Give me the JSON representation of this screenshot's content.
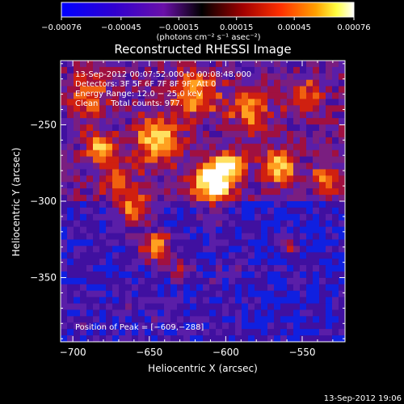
{
  "chart_data": {
    "type": "heatmap",
    "title": "Reconstructed RHESSI Image",
    "xlabel": "Heliocentric X (arcsec)",
    "ylabel": "Heliocentric Y (arcsec)",
    "xlim": [
      -708,
      -522
    ],
    "ylim": [
      -392,
      -208
    ],
    "x_ticks": [
      -700,
      -650,
      -600,
      -550
    ],
    "y_ticks": [
      -250,
      -300,
      -350
    ],
    "colorbar": {
      "range": [
        -0.00076,
        0.00076
      ],
      "ticks": [
        -0.00076,
        -0.00045,
        -0.00015,
        0.00015,
        0.00045,
        0.00076
      ],
      "tick_labels": [
        "−0.00076",
        "−0.00045",
        "−0.00015",
        "0.00015",
        "0.00045",
        "0.00076"
      ],
      "unit_label": "(photons cm⁻² s⁻¹ asec⁻²)",
      "colormap": "RHESSI blue-purple-red-yellow-white"
    },
    "peak_position": [
      -609,
      -288
    ],
    "annotations": [
      "13-Sep-2012 00:07:52.000 to 00:08:48.000",
      "Detectors: 3F 5F 6F 7F 8F 9F, Att 0",
      "Energy Range: 12.0 − 25.0 keV",
      "Clean     Total counts: 977."
    ],
    "peak_label": "Position of Peak = [−609,−288]"
  },
  "timestamp": "13-Sep-2012 19:06",
  "palette": [
    "#1020e0",
    "#4010a0",
    "#5a1ea8",
    "#7a1e80",
    "#a01040",
    "#d02010",
    "#f06010",
    "#ffa020",
    "#ffe060",
    "#ffffff"
  ]
}
